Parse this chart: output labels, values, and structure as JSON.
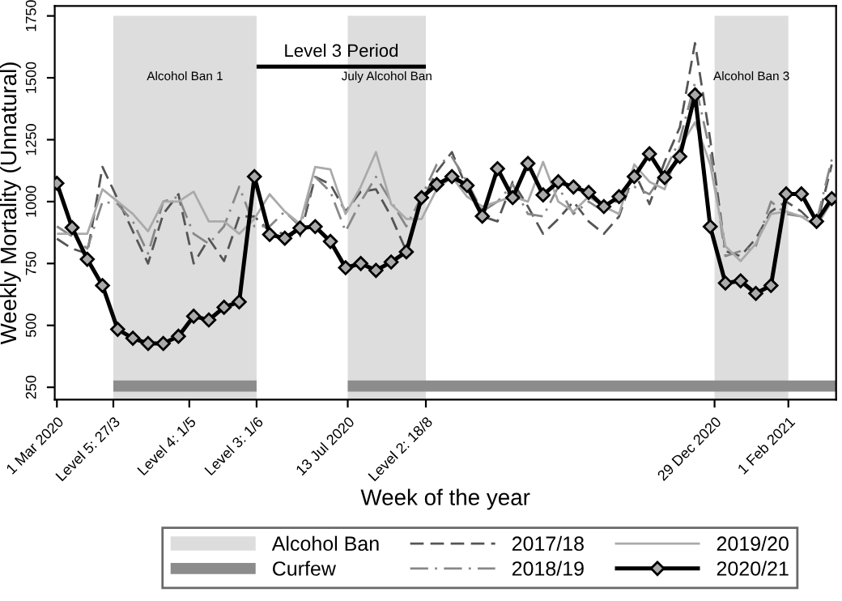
{
  "chart_data": {
    "type": "line",
    "xlabel": "Week of the year",
    "ylabel": "Weekly Mortality (Unnatural)",
    "x": [
      "2020-03-01",
      "2020-03-08",
      "2020-03-15",
      "2020-03-22",
      "2020-03-29",
      "2020-04-05",
      "2020-04-12",
      "2020-04-19",
      "2020-04-26",
      "2020-05-03",
      "2020-05-10",
      "2020-05-17",
      "2020-05-24",
      "2020-05-31",
      "2020-06-07",
      "2020-06-14",
      "2020-06-21",
      "2020-06-28",
      "2020-07-05",
      "2020-07-12",
      "2020-07-19",
      "2020-07-26",
      "2020-08-02",
      "2020-08-09",
      "2020-08-16",
      "2020-08-23",
      "2020-08-30",
      "2020-09-06",
      "2020-09-13",
      "2020-09-20",
      "2020-09-27",
      "2020-10-04",
      "2020-10-11",
      "2020-10-18",
      "2020-10-25",
      "2020-11-01",
      "2020-11-08",
      "2020-11-15",
      "2020-11-22",
      "2020-11-29",
      "2020-12-06",
      "2020-12-13",
      "2020-12-20",
      "2020-12-27",
      "2021-01-03",
      "2021-01-10",
      "2021-01-17",
      "2021-01-24",
      "2021-01-31",
      "2021-02-07",
      "2021-02-14",
      "2021-02-21"
    ],
    "xlim": [
      "2020-02-29",
      "2021-02-23"
    ],
    "ylim": [
      200,
      1790
    ],
    "xticks": [
      {
        "value": "2020-03-01",
        "label": "1 Mar 2020"
      },
      {
        "value": "2020-03-27",
        "label": "Level 5: 27/3"
      },
      {
        "value": "2020-05-01",
        "label": "Level 4: 1/5"
      },
      {
        "value": "2020-06-01",
        "label": "Level 3: 1/6"
      },
      {
        "value": "2020-07-13",
        "label": "13 Jul 2020"
      },
      {
        "value": "2020-08-18",
        "label": "Level 2: 18/8"
      },
      {
        "value": "2020-12-29",
        "label": "29 Dec 2020"
      },
      {
        "value": "2021-02-01",
        "label": "1 Feb 2021"
      }
    ],
    "yticks": [
      250,
      500,
      750,
      1000,
      1250,
      1500,
      1750
    ],
    "grid": false,
    "legend": "bottom",
    "annotations": [
      "Alcohol Ban"
    ],
    "bands": [
      {
        "axis": "x",
        "from": "2020-03-27",
        "to": "2020-06-01",
        "label": "Alcohol Ban 1",
        "color": "#dddddd"
      },
      {
        "axis": "x",
        "from": "2020-07-13",
        "to": "2020-08-18",
        "label": "July Alcohol Ban",
        "color": "#dddddd"
      },
      {
        "axis": "x",
        "from": "2020-12-29",
        "to": "2021-02-01",
        "label": "Alcohol Ban 3",
        "color": "#dddddd"
      }
    ],
    "series": [
      {
        "name": "Curfew",
        "color": "#8c8c8c",
        "line_style": "solid",
        "x": [
          "2020-03-27",
          "2020-06-01",
          "2020-06-02",
          "2020-07-13",
          "2021-02-23"
        ],
        "values": [
          255,
          255,
          null,
          255,
          255
        ]
      },
      {
        "name": "2017/18",
        "color": "#555555",
        "line_style": "dashed",
        "values": [
          850,
          810,
          790,
          1140,
          1010,
          880,
          750,
          950,
          1030,
          750,
          850,
          760,
          940,
          940,
          880,
          870,
          860,
          1100,
          1070,
          960,
          1040,
          1050,
          940,
          800,
          1000,
          1120,
          1200,
          1050,
          940,
          920,
          1080,
          980,
          870,
          930,
          1000,
          920,
          870,
          940,
          1120,
          990,
          1160,
          1300,
          1640,
          1250,
          800,
          780,
          850,
          960,
          1000,
          960,
          900,
          1150
        ]
      },
      {
        "name": "2018/19",
        "color": "#888888",
        "line_style": "dashdot",
        "values": [
          900,
          860,
          810,
          1000,
          990,
          920,
          790,
          1000,
          1020,
          870,
          830,
          900,
          1060,
          900,
          900,
          960,
          900,
          1100,
          1040,
          880,
          1000,
          1100,
          1000,
          900,
          1020,
          1150,
          1180,
          1080,
          960,
          1000,
          1070,
          950,
          940,
          1060,
          950,
          1000,
          960,
          1010,
          1060,
          1030,
          1120,
          1250,
          1480,
          1200,
          780,
          800,
          820,
          1000,
          950,
          940,
          920,
          1170
        ]
      },
      {
        "name": "2019/20",
        "color": "#aaaaaa",
        "line_style": "solid",
        "values": [
          870,
          870,
          870,
          1050,
          1000,
          950,
          880,
          1000,
          1000,
          1040,
          920,
          920,
          870,
          930,
          1030,
          960,
          910,
          1140,
          1130,
          950,
          1060,
          1200,
          990,
          930,
          930,
          1050,
          1100,
          1020,
          980,
          1000,
          1020,
          1000,
          1160,
          1000,
          960,
          1020,
          980,
          950,
          1150,
          1080,
          1050,
          1220,
          1320,
          1150,
          820,
          760,
          830,
          950,
          960,
          940,
          900,
          1000
        ]
      },
      {
        "name": "2020/21",
        "color": "#000000",
        "line_style": "solid",
        "marker": "diamond",
        "values": [
          1074,
          895,
          767,
          661,
          484,
          448,
          427,
          427,
          456,
          537,
          522,
          573,
          595,
          1101,
          867,
          852,
          893,
          899,
          839,
          733,
          750,
          722,
          756,
          797,
          1016,
          1069,
          1101,
          1065,
          941,
          1133,
          1016,
          1154,
          1027,
          1080,
          1059,
          1037,
          980,
          1020,
          1101,
          1193,
          1097,
          1182,
          1431,
          899,
          671,
          680,
          629,
          661,
          1031,
          1031,
          920,
          1012
        ]
      },
      {
        "name": "Level 3 Period",
        "color": "#000000",
        "line_style": "solid",
        "x": [
          "2020-06-01",
          "2020-08-18"
        ],
        "values": [
          1545,
          1545
        ]
      }
    ]
  }
}
